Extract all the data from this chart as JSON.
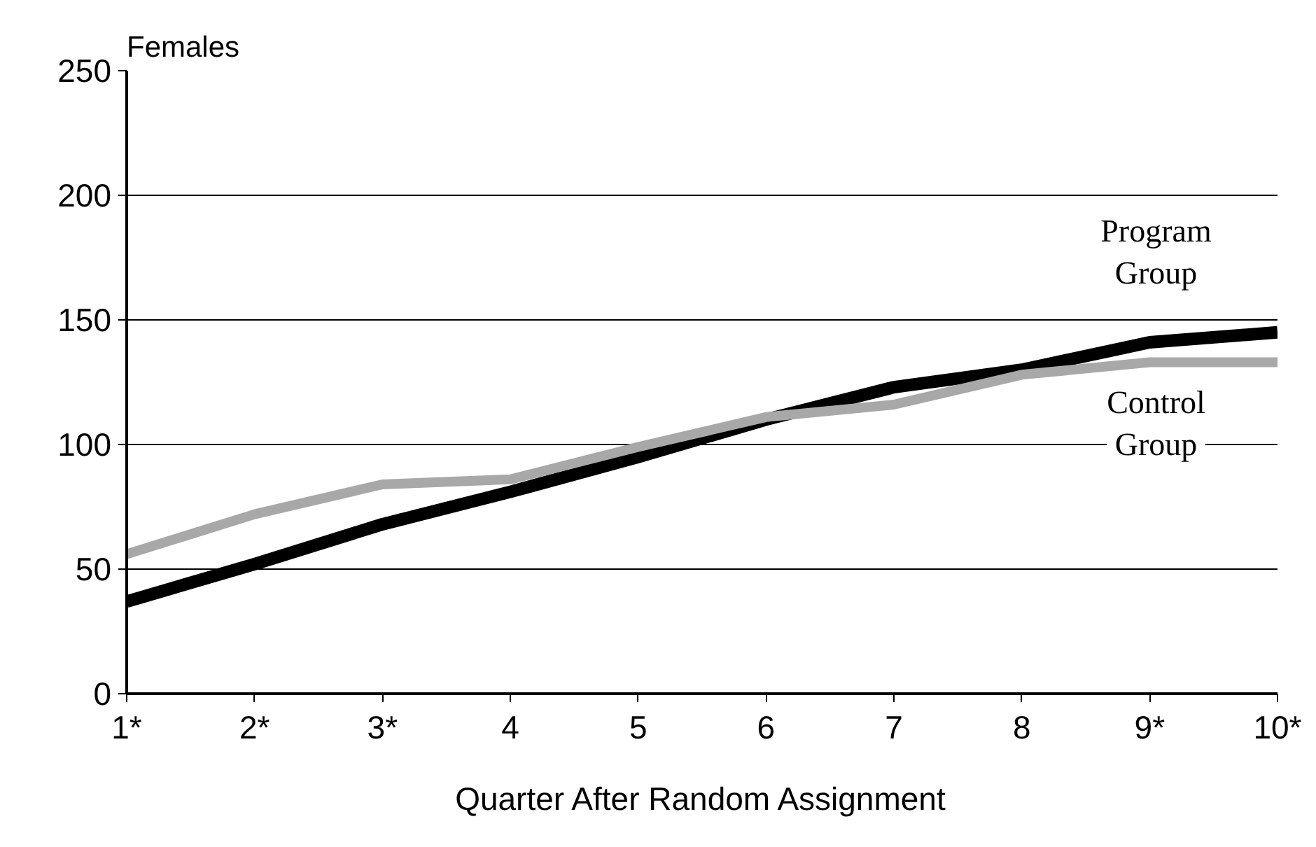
{
  "chart_data": {
    "type": "line",
    "title": "Females",
    "xlabel": "Quarter After Random Assignment",
    "categories": [
      "1*",
      "2*",
      "3*",
      "4",
      "5",
      "6",
      "7",
      "8",
      "9*",
      "10*"
    ],
    "series": [
      {
        "name": "Program Group",
        "color": "#000000",
        "values": [
          37,
          52,
          68,
          81,
          95,
          110,
          123,
          130,
          141,
          145
        ]
      },
      {
        "name": "Control Group",
        "color": "#a8a8a8",
        "values": [
          56,
          72,
          84,
          86,
          99,
          111,
          116,
          128,
          133,
          133
        ]
      }
    ],
    "ylim": [
      0,
      250
    ],
    "yticks": [
      0,
      50,
      100,
      150,
      200,
      250
    ],
    "grid": "y",
    "marker": "none",
    "line_style": "solid"
  }
}
